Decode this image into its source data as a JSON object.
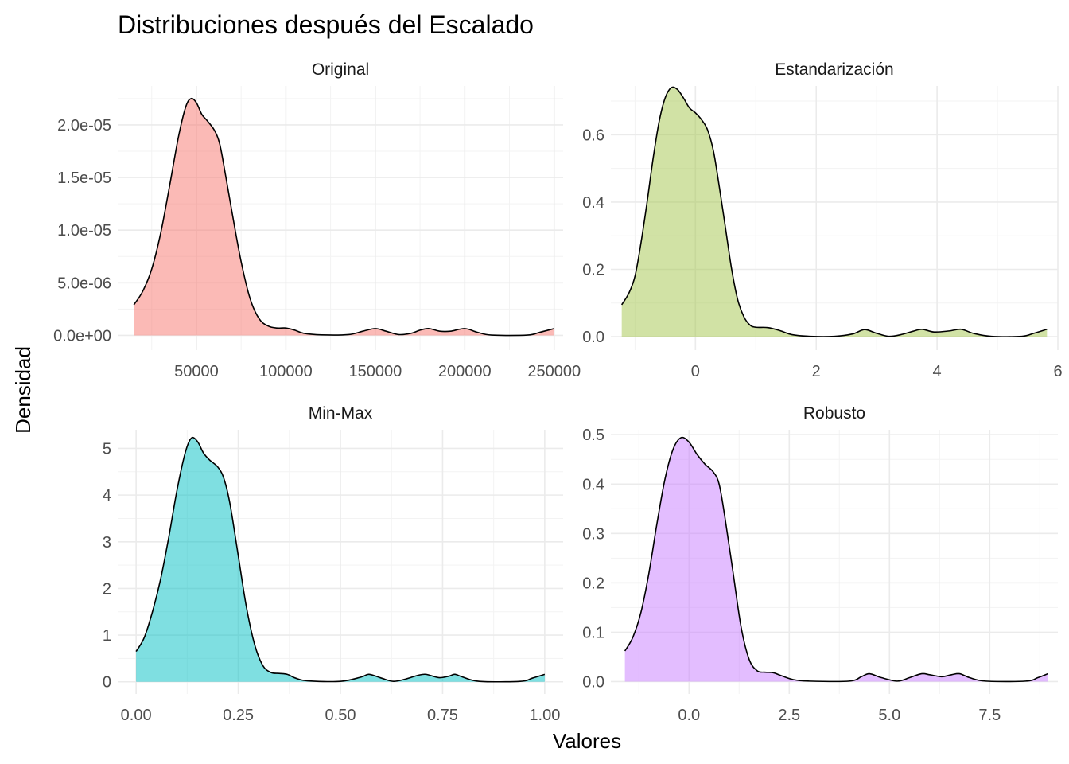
{
  "chart_data": {
    "type": "area",
    "title": "Distribuciones después del Escalado",
    "xlabel": "Valores",
    "ylabel": "Densidad",
    "grid": true,
    "legend": "none",
    "panels": [
      {
        "name": "Original",
        "color": "#F8766D",
        "xlim": [
          6000,
          255000
        ],
        "ylim": [
          -1.4e-06,
          2.37e-05
        ],
        "x_ticks": [
          50000,
          100000,
          150000,
          200000,
          250000
        ],
        "x_tick_labels": [
          "50000",
          "100000",
          "150000",
          "200000",
          "250000"
        ],
        "y_ticks": [
          0,
          5e-06,
          1e-05,
          1.5e-05,
          2e-05
        ],
        "y_tick_labels": [
          "0.0e+00",
          "5.0e-06",
          "1.0e-05",
          "1.5e-05",
          "2.0e-05"
        ],
        "points": [
          [
            15000,
            2.9e-06
          ],
          [
            20000,
            4.2e-06
          ],
          [
            25000,
            6.3e-06
          ],
          [
            30000,
            9.7e-06
          ],
          [
            35000,
            1.42e-05
          ],
          [
            40000,
            1.89e-05
          ],
          [
            44000,
            2.17e-05
          ],
          [
            47000,
            2.25e-05
          ],
          [
            50000,
            2.21e-05
          ],
          [
            53000,
            2.1e-05
          ],
          [
            56000,
            2.04e-05
          ],
          [
            60000,
            1.95e-05
          ],
          [
            63000,
            1.82e-05
          ],
          [
            66000,
            1.55e-05
          ],
          [
            70000,
            1.16e-05
          ],
          [
            75000,
            7e-06
          ],
          [
            80000,
            3.5e-06
          ],
          [
            85000,
            1.6e-06
          ],
          [
            90000,
            9e-07
          ],
          [
            95000,
            7e-07
          ],
          [
            100000,
            7e-07
          ],
          [
            105000,
            5e-07
          ],
          [
            110000,
            2e-07
          ],
          [
            120000,
            5e-08
          ],
          [
            135000,
            8e-08
          ],
          [
            143000,
            4e-07
          ],
          [
            150000,
            6.5e-07
          ],
          [
            156000,
            4e-07
          ],
          [
            163000,
            8e-08
          ],
          [
            170000,
            2e-07
          ],
          [
            175000,
            5e-07
          ],
          [
            180000,
            6.5e-07
          ],
          [
            186000,
            4e-07
          ],
          [
            192000,
            4e-07
          ],
          [
            200000,
            6.5e-07
          ],
          [
            207000,
            3e-07
          ],
          [
            215000,
            3e-08
          ],
          [
            235000,
            3e-08
          ],
          [
            242000,
            3e-07
          ],
          [
            250000,
            6.5e-07
          ]
        ]
      },
      {
        "name": "Estandarización",
        "color": "#A3C64C",
        "xlim": [
          -1.4,
          6.0
        ],
        "ylim": [
          -0.04,
          0.745
        ],
        "x_ticks": [
          0,
          2,
          4,
          6
        ],
        "x_tick_labels": [
          "0",
          "2",
          "4",
          "6"
        ],
        "y_ticks": [
          0,
          0.2,
          0.4,
          0.6
        ],
        "y_tick_labels": [
          "0.0",
          "0.2",
          "0.4",
          "0.6"
        ],
        "points": [
          [
            -1.22,
            0.095
          ],
          [
            -1.1,
            0.13
          ],
          [
            -1.0,
            0.18
          ],
          [
            -0.9,
            0.28
          ],
          [
            -0.8,
            0.4
          ],
          [
            -0.7,
            0.53
          ],
          [
            -0.6,
            0.64
          ],
          [
            -0.5,
            0.71
          ],
          [
            -0.4,
            0.74
          ],
          [
            -0.3,
            0.735
          ],
          [
            -0.2,
            0.71
          ],
          [
            -0.1,
            0.68
          ],
          [
            0.0,
            0.665
          ],
          [
            0.1,
            0.645
          ],
          [
            0.2,
            0.615
          ],
          [
            0.3,
            0.55
          ],
          [
            0.4,
            0.44
          ],
          [
            0.5,
            0.32
          ],
          [
            0.6,
            0.2
          ],
          [
            0.7,
            0.11
          ],
          [
            0.8,
            0.06
          ],
          [
            0.9,
            0.035
          ],
          [
            1.0,
            0.028
          ],
          [
            1.2,
            0.027
          ],
          [
            1.4,
            0.018
          ],
          [
            1.6,
            0.006
          ],
          [
            1.9,
            0.001
          ],
          [
            2.3,
            0.001
          ],
          [
            2.6,
            0.008
          ],
          [
            2.8,
            0.021
          ],
          [
            3.0,
            0.01
          ],
          [
            3.2,
            0.001
          ],
          [
            3.4,
            0.006
          ],
          [
            3.6,
            0.016
          ],
          [
            3.75,
            0.022
          ],
          [
            3.95,
            0.014
          ],
          [
            4.2,
            0.017
          ],
          [
            4.4,
            0.022
          ],
          [
            4.6,
            0.01
          ],
          [
            4.9,
            0.001
          ],
          [
            5.4,
            0.001
          ],
          [
            5.6,
            0.01
          ],
          [
            5.82,
            0.022
          ]
        ]
      },
      {
        "name": "Min-Max",
        "color": "#00BFC4",
        "xlim": [
          -0.045,
          1.045
        ],
        "ylim": [
          -0.26,
          5.4
        ],
        "x_ticks": [
          0,
          0.25,
          0.5,
          0.75,
          1
        ],
        "x_tick_labels": [
          "0.00",
          "0.25",
          "0.50",
          "0.75",
          "1.00"
        ],
        "y_ticks": [
          0,
          1,
          2,
          3,
          4,
          5
        ],
        "y_tick_labels": [
          "0",
          "1",
          "2",
          "3",
          "4",
          "5"
        ],
        "points": [
          [
            0.0,
            0.65
          ],
          [
            0.02,
            0.95
          ],
          [
            0.04,
            1.5
          ],
          [
            0.06,
            2.2
          ],
          [
            0.08,
            3.1
          ],
          [
            0.1,
            4.1
          ],
          [
            0.12,
            4.9
          ],
          [
            0.135,
            5.22
          ],
          [
            0.15,
            5.15
          ],
          [
            0.165,
            4.9
          ],
          [
            0.18,
            4.75
          ],
          [
            0.2,
            4.6
          ],
          [
            0.215,
            4.35
          ],
          [
            0.23,
            3.8
          ],
          [
            0.25,
            2.7
          ],
          [
            0.27,
            1.6
          ],
          [
            0.29,
            0.8
          ],
          [
            0.31,
            0.35
          ],
          [
            0.33,
            0.2
          ],
          [
            0.35,
            0.18
          ],
          [
            0.37,
            0.16
          ],
          [
            0.39,
            0.08
          ],
          [
            0.42,
            0.02
          ],
          [
            0.5,
            0.01
          ],
          [
            0.55,
            0.1
          ],
          [
            0.57,
            0.16
          ],
          [
            0.6,
            0.08
          ],
          [
            0.63,
            0.01
          ],
          [
            0.66,
            0.06
          ],
          [
            0.69,
            0.14
          ],
          [
            0.71,
            0.16
          ],
          [
            0.74,
            0.09
          ],
          [
            0.765,
            0.12
          ],
          [
            0.78,
            0.16
          ],
          [
            0.8,
            0.1
          ],
          [
            0.84,
            0.01
          ],
          [
            0.94,
            0.01
          ],
          [
            0.97,
            0.08
          ],
          [
            1.0,
            0.16
          ]
        ]
      },
      {
        "name": "Robusto",
        "color": "#C77CFF",
        "xlim": [
          -1.95,
          9.2
        ],
        "ylim": [
          -0.025,
          0.51
        ],
        "x_ticks": [
          0,
          2.5,
          5,
          7.5
        ],
        "x_tick_labels": [
          "0.0",
          "2.5",
          "5.0",
          "7.5"
        ],
        "y_ticks": [
          0,
          0.1,
          0.2,
          0.3,
          0.4,
          0.5
        ],
        "y_tick_labels": [
          "0.0",
          "0.1",
          "0.2",
          "0.3",
          "0.4",
          "0.5"
        ],
        "points": [
          [
            -1.6,
            0.062
          ],
          [
            -1.4,
            0.09
          ],
          [
            -1.2,
            0.14
          ],
          [
            -1.0,
            0.22
          ],
          [
            -0.8,
            0.32
          ],
          [
            -0.6,
            0.41
          ],
          [
            -0.4,
            0.47
          ],
          [
            -0.2,
            0.494
          ],
          [
            0.0,
            0.485
          ],
          [
            0.2,
            0.46
          ],
          [
            0.4,
            0.44
          ],
          [
            0.6,
            0.425
          ],
          [
            0.75,
            0.4
          ],
          [
            0.9,
            0.33
          ],
          [
            1.1,
            0.22
          ],
          [
            1.3,
            0.11
          ],
          [
            1.5,
            0.045
          ],
          [
            1.7,
            0.022
          ],
          [
            1.9,
            0.019
          ],
          [
            2.1,
            0.018
          ],
          [
            2.3,
            0.012
          ],
          [
            2.6,
            0.004
          ],
          [
            3.0,
            0.001
          ],
          [
            4.0,
            0.001
          ],
          [
            4.3,
            0.01
          ],
          [
            4.5,
            0.016
          ],
          [
            4.8,
            0.008
          ],
          [
            5.2,
            0.001
          ],
          [
            5.5,
            0.008
          ],
          [
            5.8,
            0.016
          ],
          [
            6.0,
            0.014
          ],
          [
            6.3,
            0.01
          ],
          [
            6.55,
            0.014
          ],
          [
            6.75,
            0.016
          ],
          [
            7.0,
            0.008
          ],
          [
            7.4,
            0.001
          ],
          [
            8.4,
            0.001
          ],
          [
            8.7,
            0.008
          ],
          [
            8.95,
            0.016
          ]
        ]
      }
    ]
  }
}
